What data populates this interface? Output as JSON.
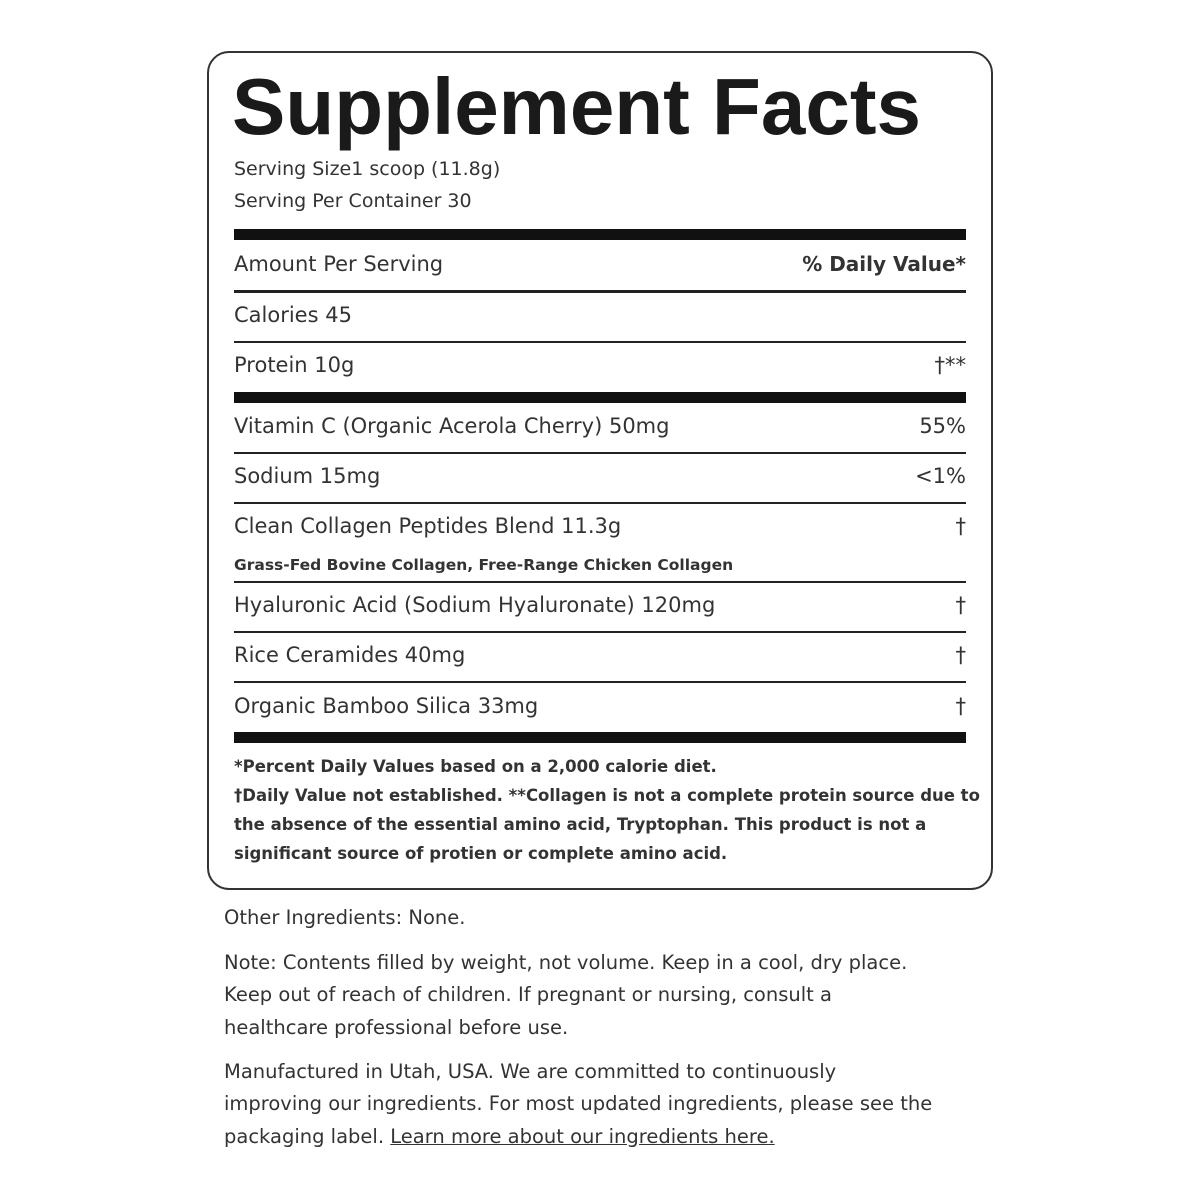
{
  "label": {
    "title": "Supplement Facts",
    "serving_size": "Serving Size1 scoop (11.8g)",
    "servings_per_container": "Serving Per Container 30",
    "header_left": "Amount Per Serving",
    "header_right": "% Daily Value*",
    "rows": [
      {
        "name": "Calories 45",
        "dv": ""
      },
      {
        "name": "Protein 10g",
        "dv": "†**"
      },
      {
        "name": "Vitamin C (Organic Acerola Cherry) 50mg",
        "dv": "55%"
      },
      {
        "name": "Sodium 15mg",
        "dv": "<1%"
      },
      {
        "name": "Clean Collagen Peptides Blend 11.3g",
        "dv": "†",
        "sub": "Grass-Fed Bovine Collagen, Free-Range Chicken Collagen"
      },
      {
        "name": "Hyaluronic Acid (Sodium Hyaluronate) 120mg",
        "dv": "†"
      },
      {
        "name": "Rice Ceramides 40mg",
        "dv": "†"
      },
      {
        "name": "Organic Bamboo Silica 33mg",
        "dv": "†"
      }
    ],
    "footnotes": [
      "*Percent Daily Values based on a 2,000 calorie diet.",
      "†Daily Value not established. **Collagen is not a complete protein source due to",
      "the absence of the essential amino acid, Tryptophan. This product is not a",
      "significant source of protien or complete amino acid."
    ]
  },
  "below": {
    "other_ingredients": "Other Ingredients: None.",
    "note": [
      "Note: Contents filled by weight, not volume. Keep in a cool, dry place.",
      "Keep out of reach of children. If pregnant or nursing, consult a",
      "healthcare professional before use."
    ],
    "manufactured": [
      "Manufactured in Utah, USA. We are committed to continuously",
      "improving our ingredients. For most updated ingredients, please see the",
      "packaging label. "
    ],
    "link_text": "Learn more about our ingredients here."
  }
}
